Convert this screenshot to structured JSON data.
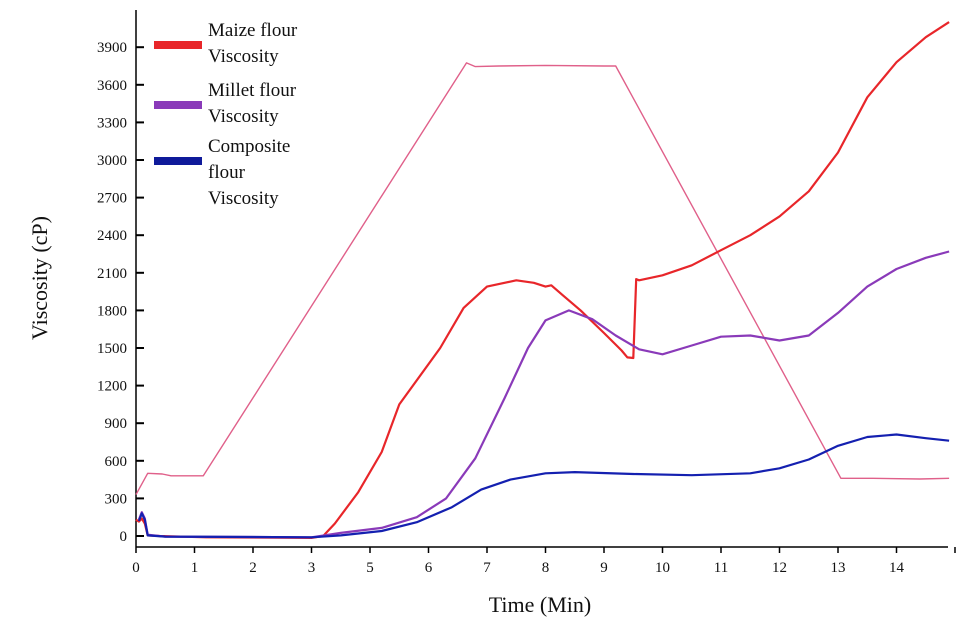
{
  "chart_data": {
    "type": "line",
    "title": "",
    "xlabel": "Time (Min)",
    "ylabel": "Viscosity (cP)",
    "xlim": [
      0,
      14.7
    ],
    "ylim": [
      -30,
      4100
    ],
    "x_tick_labels": [
      "0",
      "1",
      "2",
      "3",
      "5",
      "6",
      "7",
      "8",
      "9",
      "10",
      "11",
      "12",
      "13",
      "14"
    ],
    "y_ticks": [
      0,
      300,
      600,
      900,
      1200,
      1500,
      1800,
      2100,
      2400,
      2700,
      3000,
      3300,
      3600,
      3900
    ],
    "y_tick_labels": [
      "0",
      "300",
      "600",
      "900",
      "1200",
      "1500",
      "1800",
      "2100",
      "2400",
      "2700",
      "3000",
      "3300",
      "3600",
      "3900"
    ],
    "grid": false,
    "legend_position": "top-left",
    "legend": [
      {
        "lines": [
          "Maize flour",
          "Viscosity"
        ],
        "color": "#e8262a"
      },
      {
        "lines": [
          "Millet flour",
          "Viscosity"
        ],
        "color": "#8a3ab9"
      },
      {
        "lines": [
          "Composite",
          "flour",
          "Viscosity"
        ],
        "color": "#0f1a9a"
      }
    ],
    "series": [
      {
        "color": "#e0608a",
        "points": [
          [
            0,
            330
          ],
          [
            0.2,
            500
          ],
          [
            0.45,
            495
          ],
          [
            0.6,
            480
          ],
          [
            1.15,
            480
          ],
          [
            5.65,
            3775
          ],
          [
            5.8,
            3745
          ],
          [
            6.2,
            3750
          ],
          [
            7,
            3755
          ],
          [
            8,
            3750
          ],
          [
            8.2,
            3750
          ],
          [
            12.05,
            460
          ],
          [
            12.6,
            460
          ],
          [
            13.4,
            455
          ],
          [
            13.9,
            460
          ]
        ]
      },
      {
        "color": "#e8262a",
        "points": [
          [
            0,
            130
          ],
          [
            0.05,
            115
          ],
          [
            0.1,
            140
          ],
          [
            0.15,
            100
          ],
          [
            0.2,
            5
          ],
          [
            0.4,
            0
          ],
          [
            1.2,
            -10
          ],
          [
            3.0,
            -15
          ],
          [
            3.2,
            0
          ],
          [
            3.4,
            100
          ],
          [
            3.8,
            350
          ],
          [
            4.2,
            670
          ],
          [
            4.5,
            1050
          ],
          [
            5.2,
            1500
          ],
          [
            5.6,
            1820
          ],
          [
            6.0,
            1990
          ],
          [
            6.5,
            2040
          ],
          [
            6.8,
            2020
          ],
          [
            7.0,
            1990
          ],
          [
            7.1,
            2000
          ],
          [
            7.3,
            1920
          ],
          [
            7.6,
            1800
          ],
          [
            8.0,
            1620
          ],
          [
            8.3,
            1480
          ],
          [
            8.4,
            1425
          ],
          [
            8.5,
            1420
          ],
          [
            8.55,
            2050
          ],
          [
            8.6,
            2040
          ],
          [
            9.0,
            2080
          ],
          [
            9.5,
            2160
          ],
          [
            10.0,
            2280
          ],
          [
            10.5,
            2400
          ],
          [
            11.0,
            2550
          ],
          [
            11.5,
            2750
          ],
          [
            12.0,
            3060
          ],
          [
            12.5,
            3500
          ],
          [
            13.0,
            3780
          ],
          [
            13.5,
            3980
          ],
          [
            13.9,
            4100
          ]
        ]
      },
      {
        "color": "#8a3ab9",
        "points": [
          [
            0.05,
            130
          ],
          [
            0.1,
            190
          ],
          [
            0.15,
            140
          ],
          [
            0.2,
            10
          ],
          [
            0.5,
            -5
          ],
          [
            3.0,
            -10
          ],
          [
            3.5,
            25
          ],
          [
            4.2,
            65
          ],
          [
            4.8,
            150
          ],
          [
            5.3,
            300
          ],
          [
            5.8,
            620
          ],
          [
            6.3,
            1100
          ],
          [
            6.7,
            1500
          ],
          [
            7.0,
            1720
          ],
          [
            7.4,
            1800
          ],
          [
            7.8,
            1730
          ],
          [
            8.2,
            1600
          ],
          [
            8.6,
            1490
          ],
          [
            9.0,
            1450
          ],
          [
            9.5,
            1520
          ],
          [
            10.0,
            1590
          ],
          [
            10.5,
            1600
          ],
          [
            11.0,
            1560
          ],
          [
            11.5,
            1600
          ],
          [
            12.0,
            1780
          ],
          [
            12.5,
            1990
          ],
          [
            13.0,
            2130
          ],
          [
            13.5,
            2220
          ],
          [
            13.9,
            2270
          ]
        ]
      },
      {
        "color": "#1420b0",
        "points": [
          [
            0.05,
            120
          ],
          [
            0.1,
            180
          ],
          [
            0.15,
            130
          ],
          [
            0.2,
            5
          ],
          [
            0.5,
            -5
          ],
          [
            3.0,
            -10
          ],
          [
            3.5,
            5
          ],
          [
            4.2,
            40
          ],
          [
            4.8,
            110
          ],
          [
            5.4,
            230
          ],
          [
            5.9,
            370
          ],
          [
            6.4,
            450
          ],
          [
            7.0,
            500
          ],
          [
            7.5,
            510
          ],
          [
            8.5,
            495
          ],
          [
            9.5,
            485
          ],
          [
            10.5,
            500
          ],
          [
            11.0,
            540
          ],
          [
            11.5,
            610
          ],
          [
            12.0,
            720
          ],
          [
            12.5,
            790
          ],
          [
            13.0,
            810
          ],
          [
            13.5,
            780
          ],
          [
            13.9,
            760
          ]
        ]
      }
    ]
  }
}
